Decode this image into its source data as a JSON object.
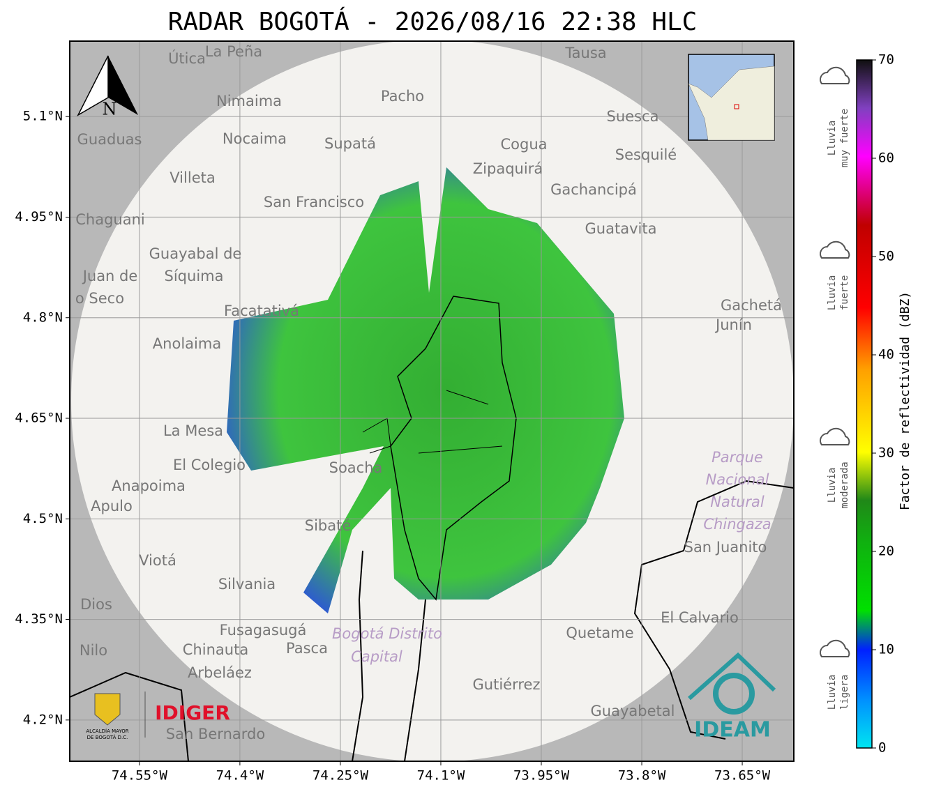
{
  "title": "RADAR BOGOTÁ - 2026/08/16 22:38 HLC",
  "map": {
    "lon_range": [
      -74.654,
      -73.573
    ],
    "lat_range": [
      4.1385,
      5.2125
    ],
    "lon_ticks": [
      {
        "value": -74.55,
        "label": "74.55°W"
      },
      {
        "value": -74.4,
        "label": "74.4°W"
      },
      {
        "value": -74.25,
        "label": "74.25°W"
      },
      {
        "value": -74.1,
        "label": "74.1°W"
      },
      {
        "value": -73.95,
        "label": "73.95°W"
      },
      {
        "value": -73.8,
        "label": "73.8°W"
      },
      {
        "value": -73.65,
        "label": "73.65°W"
      }
    ],
    "lat_ticks": [
      {
        "value": 5.1,
        "label": "5.1°N"
      },
      {
        "value": 4.95,
        "label": "4.95°N"
      },
      {
        "value": 4.8,
        "label": "4.8°N"
      },
      {
        "value": 4.65,
        "label": "4.65°N"
      },
      {
        "value": 4.5,
        "label": "4.5°N"
      },
      {
        "value": 4.35,
        "label": "4.35°N"
      },
      {
        "value": 4.2,
        "label": "4.2°N"
      }
    ],
    "grid": true,
    "north_label": "N",
    "places": [
      "Útica",
      "La Peña",
      "Tausa",
      "Pacho",
      "Nimaima",
      "Guaduas",
      "Nocaima",
      "Supatá",
      "Cogua",
      "Suesca",
      "Sesquilé",
      "Villeta",
      "Zipaquirá",
      "Gachancipá",
      "San Francisco",
      "Chaguani",
      "Guatavita",
      "Guayabal de",
      "Síquima",
      "Juan de",
      "o Seco",
      "Facatativá",
      "Gachetá",
      "Junín",
      "Anolaima",
      "La Mesa",
      "El Colegio",
      "Soacha",
      "Anapoima",
      "Apulo",
      "Sibaté",
      "San Juanito",
      "Viotá",
      "Silvania",
      "Dios",
      "El Calvario",
      "Fusagasugá",
      "Quetame",
      "Nilo",
      "Chinauta",
      "Pasca",
      "Arbeláez",
      "Gutiérrez",
      "Guayabetal",
      "San Bernardo"
    ],
    "regions": [
      "Parque",
      "Nacional",
      "Natural",
      "Chingaza",
      "Bogotá Distrito",
      "Capital"
    ]
  },
  "logos": {
    "alcaldia": [
      "ALCALDÍA MAYOR",
      "DE BOGOTÁ D.C."
    ],
    "idiger": "IDIGER",
    "ideam": "IDEAM"
  },
  "colorbar": {
    "label": "Factor de reflectividad (dBZ)",
    "range": [
      0,
      70
    ],
    "ticks": [
      0,
      10,
      20,
      30,
      40,
      50,
      60,
      70
    ]
  },
  "rain_levels": [
    {
      "line1": "Lluvia",
      "line2": "muy fuerte"
    },
    {
      "line1": "Lluvia",
      "line2": "fuerte"
    },
    {
      "line1": "Lluvia",
      "line2": "moderada"
    },
    {
      "line1": "Lluvia",
      "line2": "ligera"
    }
  ]
}
